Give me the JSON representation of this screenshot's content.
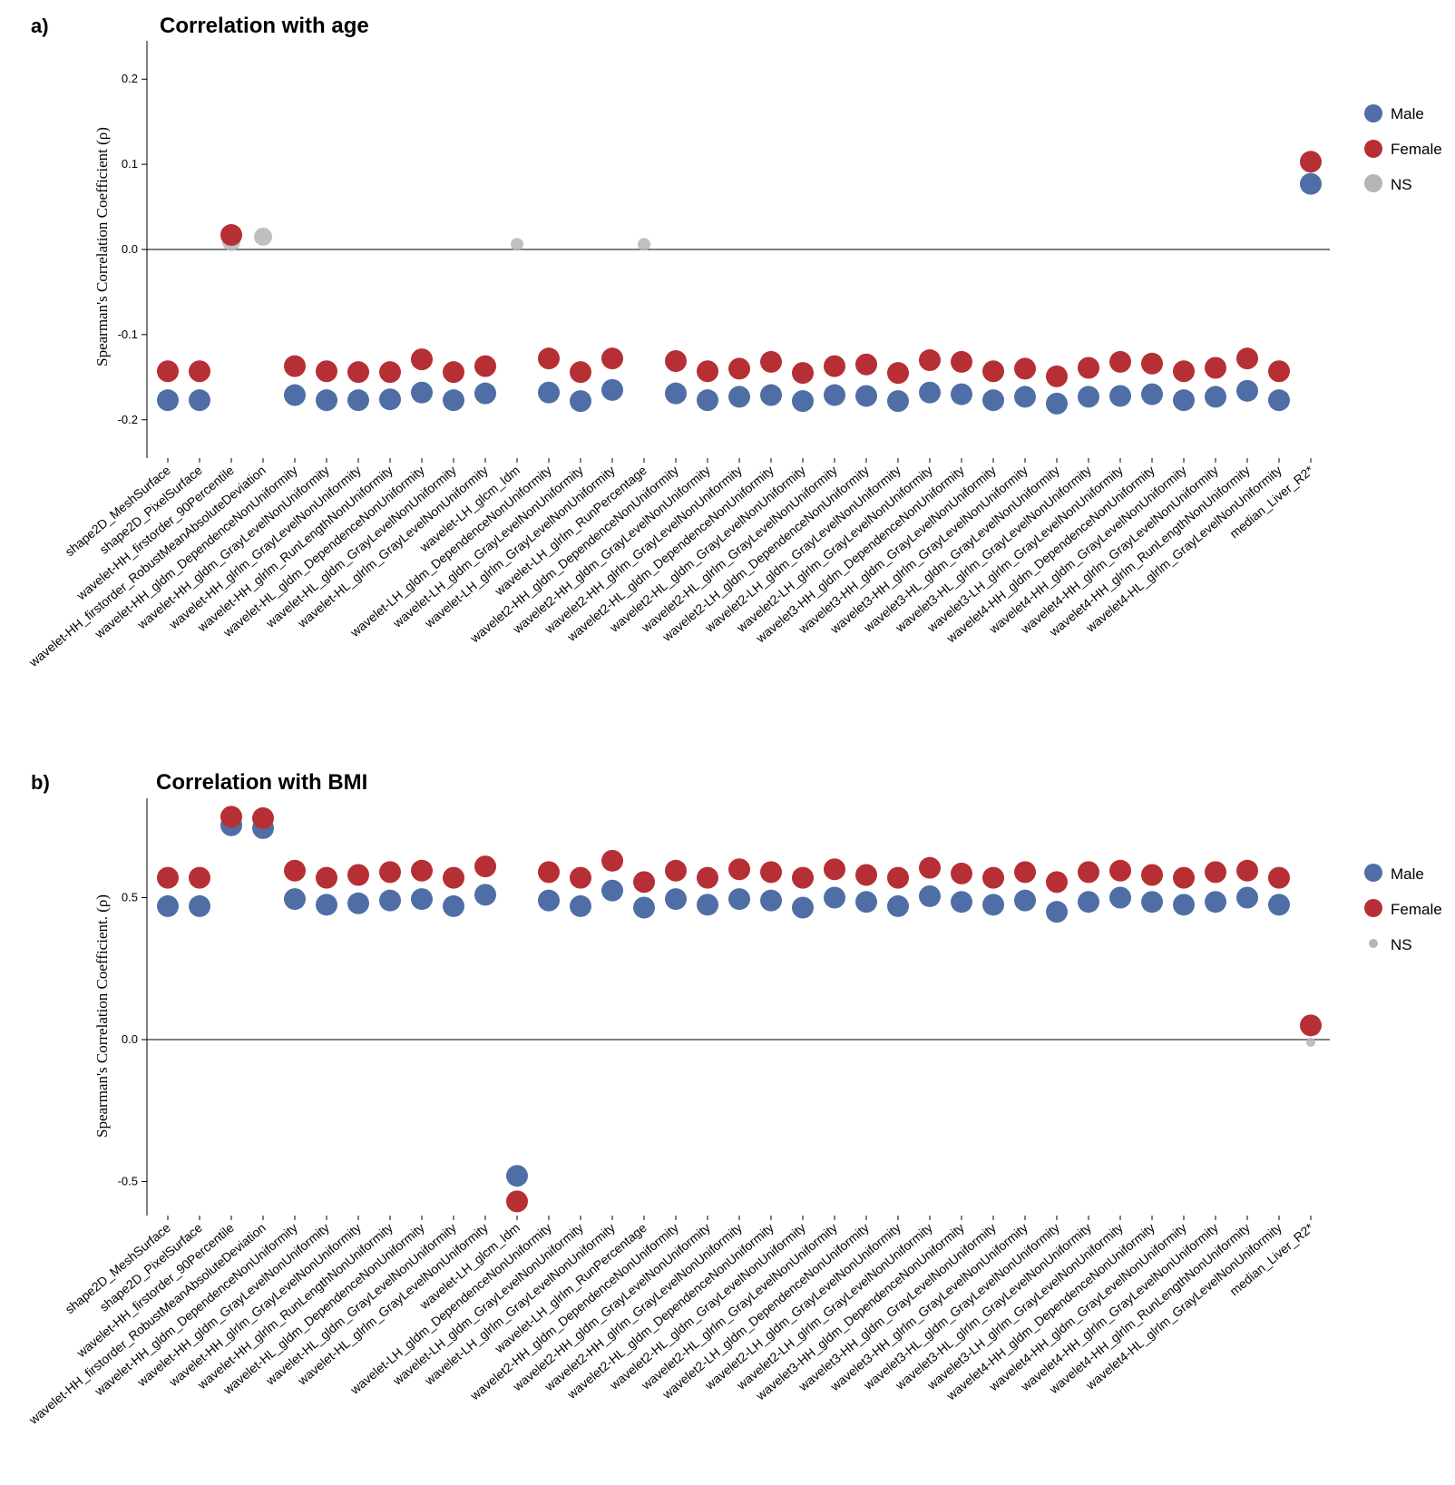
{
  "colors": {
    "male": "#4f6ea5",
    "female": "#b62f34",
    "ns": "#b5b5b5"
  },
  "legend": {
    "male": "Male",
    "female": "Female",
    "ns": "NS"
  },
  "features": [
    "shape2D_MeshSurface",
    "shape2D_PixelSurface",
    "wavelet-HH_firstorder_90Percentile",
    "wavelet-HH_firstorder_RobustMeanAbsoluteDeviation",
    "wavelet-HH_gldm_DependenceNonUniformity",
    "wavelet-HH_gldm_GrayLevelNonUniformity",
    "wavelet-HH_glrlm_GrayLevelNonUniformity",
    "wavelet-HH_glrlm_RunLengthNonUniformity",
    "wavelet-HL_gldm_DependenceNonUniformity",
    "wavelet-HL_gldm_GrayLevelNonUniformity",
    "wavelet-HL_glrlm_GrayLevelNonUniformity",
    "wavelet-LH_glcm_Idm",
    "wavelet-LH_gldm_DependenceNonUniformity",
    "wavelet-LH_gldm_GrayLevelNonUniformity",
    "wavelet-LH_glrlm_GrayLevelNonUniformity",
    "wavelet-LH_glrlm_RunPercentage",
    "wavelet2-HH_gldm_DependenceNonUniformity",
    "wavelet2-HH_gldm_GrayLevelNonUniformity",
    "wavelet2-HH_glrlm_GrayLevelNonUniformity",
    "wavelet2-HL_gldm_DependenceNonUniformity",
    "wavelet2-HL_gldm_GrayLevelNonUniformity",
    "wavelet2-HL_glrlm_GrayLevelNonUniformity",
    "wavelet2-LH_gldm_DependenceNonUniformity",
    "wavelet2-LH_gldm_GrayLevelNonUniformity",
    "wavelet2-LH_glrlm_GrayLevelNonUniformity",
    "wavelet3-HH_gldm_DependenceNonUniformity",
    "wavelet3-HH_gldm_GrayLevelNonUniformity",
    "wavelet3-HH_glrlm_GrayLevelNonUniformity",
    "wavelet3-HL_gldm_GrayLevelNonUniformity",
    "wavelet3-HL_glrlm_GrayLevelNonUniformity",
    "wavelet3-LH_glrlm_GrayLevelNonUniformity",
    "wavelet4-HH_gldm_DependenceNonUniformity",
    "wavelet4-HH_gldm_GrayLevelNonUniformity",
    "wavelet4-HH_glrlm_GrayLevelNonUniformity",
    "wavelet4-HH_glrlm_RunLengthNonUniformity",
    "wavelet4-HL_glrlm_GrayLevelNonUniformity",
    "median_Liver_R2*"
  ],
  "chart_data": [
    {
      "type": "scatter",
      "panel_label": "a)",
      "title": "Correlation with age",
      "ylabel": "Spearman's Correlation Coefficient  (ρ)",
      "ylim": [
        -0.245,
        0.245
      ],
      "yticks": [
        -0.2,
        -0.1,
        0.0,
        0.1,
        0.2
      ],
      "ytick_labels": [
        "-0.2",
        "-0.1",
        "0.0",
        "0.1",
        "0.2"
      ],
      "series": [
        {
          "name": "Female",
          "values": [
            -0.143,
            -0.143,
            0.017,
            null,
            -0.137,
            -0.143,
            -0.144,
            -0.144,
            -0.129,
            -0.144,
            -0.137,
            null,
            -0.128,
            -0.144,
            -0.128,
            null,
            -0.131,
            -0.143,
            -0.14,
            -0.132,
            -0.145,
            -0.137,
            -0.135,
            -0.145,
            -0.13,
            -0.132,
            -0.143,
            -0.14,
            -0.149,
            -0.139,
            -0.132,
            -0.134,
            -0.143,
            -0.139,
            -0.128,
            -0.143,
            0.103
          ]
        },
        {
          "name": "Male",
          "values": [
            -0.177,
            -0.177,
            null,
            null,
            -0.171,
            -0.177,
            -0.177,
            -0.176,
            -0.168,
            -0.177,
            -0.169,
            null,
            -0.168,
            -0.178,
            -0.165,
            null,
            -0.169,
            -0.177,
            -0.173,
            -0.171,
            -0.178,
            -0.171,
            -0.172,
            -0.178,
            -0.168,
            -0.17,
            -0.177,
            -0.173,
            -0.181,
            -0.173,
            -0.172,
            -0.17,
            -0.177,
            -0.173,
            -0.166,
            -0.177,
            0.077
          ]
        },
        {
          "name": "NS",
          "values": [
            null,
            null,
            0.009,
            0.015,
            null,
            null,
            null,
            null,
            null,
            null,
            null,
            0.006,
            null,
            null,
            null,
            0.006,
            null,
            null,
            null,
            null,
            null,
            null,
            null,
            null,
            null,
            null,
            null,
            null,
            null,
            null,
            null,
            null,
            null,
            null,
            null,
            null,
            null
          ]
        }
      ]
    },
    {
      "type": "scatter",
      "panel_label": "b)",
      "title": "Correlation with BMI",
      "ylabel": "Spearman's Correlation Coefficient. (ρ)",
      "ylim": [
        -0.62,
        0.85
      ],
      "yticks": [
        -0.5,
        0.0,
        0.5
      ],
      "ytick_labels": [
        "-0.5",
        "0.0",
        "0.5"
      ],
      "series": [
        {
          "name": "Female",
          "values": [
            0.57,
            0.57,
            0.785,
            0.78,
            0.595,
            0.57,
            0.58,
            0.59,
            0.595,
            0.57,
            0.61,
            -0.57,
            0.59,
            0.57,
            0.63,
            0.555,
            0.595,
            0.57,
            0.6,
            0.59,
            0.57,
            0.6,
            0.58,
            0.57,
            0.605,
            0.585,
            0.57,
            0.59,
            0.555,
            0.59,
            0.595,
            0.58,
            0.57,
            0.59,
            0.595,
            0.57,
            0.05
          ]
        },
        {
          "name": "Male",
          "values": [
            0.47,
            0.47,
            0.755,
            0.745,
            0.495,
            0.475,
            0.48,
            0.49,
            0.495,
            0.47,
            0.51,
            -0.48,
            0.49,
            0.47,
            0.525,
            0.465,
            0.495,
            0.475,
            0.495,
            0.49,
            0.465,
            0.5,
            0.485,
            0.47,
            0.505,
            0.485,
            0.475,
            0.49,
            0.45,
            0.485,
            0.5,
            0.485,
            0.475,
            0.485,
            0.5,
            0.475,
            null
          ]
        },
        {
          "name": "NS",
          "values": [
            null,
            null,
            null,
            null,
            null,
            null,
            null,
            null,
            null,
            null,
            null,
            null,
            null,
            null,
            null,
            null,
            null,
            null,
            null,
            null,
            null,
            null,
            null,
            null,
            null,
            null,
            null,
            null,
            null,
            null,
            null,
            null,
            null,
            null,
            null,
            null,
            -0.01
          ]
        }
      ]
    }
  ]
}
